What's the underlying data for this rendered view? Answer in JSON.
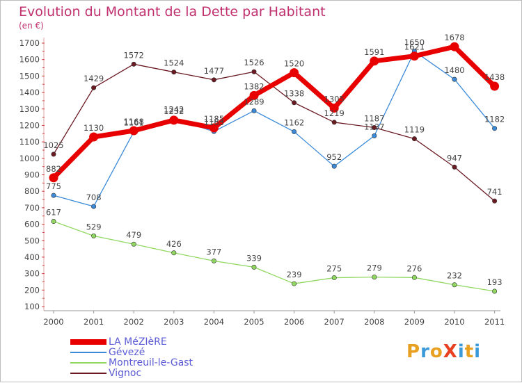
{
  "header": {
    "title": "Evolution du Montant de la Dette par Habitant",
    "unit": "(en €)"
  },
  "logo": {
    "text": "ProXiti",
    "colors": [
      "#e8a020",
      "#3a9ad9",
      "#e8a020",
      "#e84020",
      "#3a9ad9",
      "#e8a020",
      "#3a9ad9"
    ]
  },
  "chart_data": {
    "type": "line",
    "x": [
      "2000",
      "2001",
      "2002",
      "2003",
      "2004",
      "2005",
      "2006",
      "2007",
      "2008",
      "2009",
      "2010",
      "2011"
    ],
    "yticks": [
      100,
      200,
      300,
      400,
      500,
      600,
      700,
      800,
      900,
      1000,
      1100,
      1200,
      1300,
      1400,
      1500,
      1600,
      1700
    ],
    "ylim": [
      100,
      1700
    ],
    "grid": false,
    "legend_position": "bottom-left",
    "series": [
      {
        "name": "LA MéZIèRE",
        "color": "#e80000",
        "values": [
          882,
          1130,
          1168,
          1232,
          1185,
          1382,
          1520,
          1305,
          1591,
          1621,
          1678,
          1438
        ]
      },
      {
        "name": "Gévezé",
        "color": "#3a8ad9",
        "values": [
          775,
          708,
          1161,
          1242,
          1163,
          1289,
          1162,
          952,
          1137,
          1650,
          1480,
          1182
        ]
      },
      {
        "name": "Montreuil-le-Gast",
        "color": "#90d860",
        "values": [
          617,
          529,
          479,
          426,
          377,
          339,
          239,
          275,
          279,
          276,
          232,
          193
        ]
      },
      {
        "name": "Vignoc",
        "color": "#6b1a22",
        "values": [
          1025,
          1429,
          1572,
          1524,
          1477,
          1526,
          1338,
          1219,
          1187,
          1119,
          947,
          741
        ]
      }
    ]
  }
}
